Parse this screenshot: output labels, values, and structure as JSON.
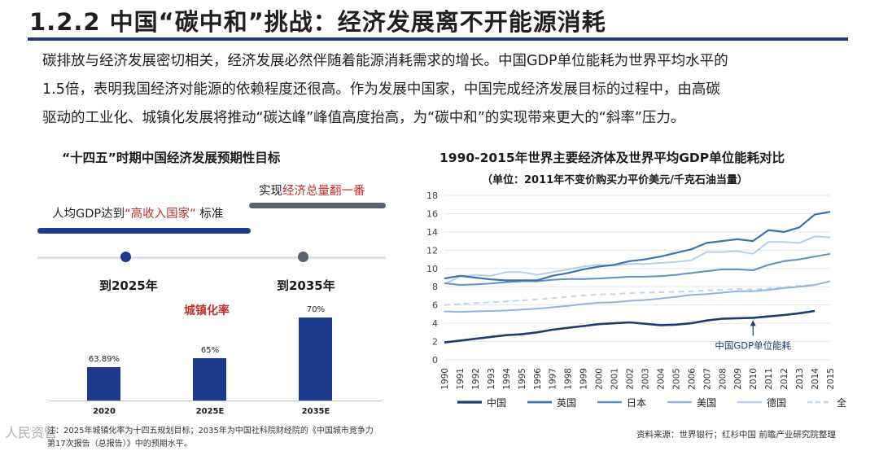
{
  "header": {
    "title": "1.2.2 中国“碳中和”挑战：经济发展离不开能源消耗"
  },
  "intro": {
    "lines": [
      "碳排放与经济发展密切相关，经济发展必然伴随着能源消耗需求的增长。中国GDP单位能耗为世界平均水平的",
      "1.5倍，表明我国经济对能源的依赖程度还很高。作为发展中国家，中国完成经济发展目标的过程中，由高碳",
      "驱动的工业化、城镇化发展将推动“碳达峰”峰值高度抬高，为“碳中和”的实现带来更大的“斜率”压力。"
    ]
  },
  "plan_panel": {
    "title": "“十四五”时期中国经济发展预期性目标",
    "target_2035_prefix": "实现",
    "target_2035_highlight": "经济总量翻一番",
    "target_2025_prefix": "人均GDP达到",
    "target_2025_highlight": "“高收入国家”",
    "target_2025_suffix": "标准",
    "milestone_1": "到2025年",
    "milestone_2": "到2035年",
    "urbanization_label": "城镇化率",
    "colors": {
      "navy": "#1e3a8c",
      "grey": "#5a6270",
      "highlight": "#c0302b"
    },
    "urbanization_bars": [
      {
        "category": "2020",
        "value": 63.89,
        "label": "63.89%"
      },
      {
        "category": "2025E",
        "value": 65,
        "label": "65%"
      },
      {
        "category": "2035E",
        "value": 70,
        "label": "70%"
      }
    ],
    "note": "注：2025年城镇化率为十四五规划目标；2035年为中国社科院财经院的《中国城市竞争力第17次报告（总报告）》中的预期水平。",
    "watermark": "人民资管"
  },
  "chart_data": {
    "type": "line",
    "title": "1990-2015年世界主要经济体及世界平均GDP单位能耗对比",
    "subtitle": "（单位：2011年不变价购买力平价美元/千克石油当量）",
    "x": [
      "1990",
      "1991",
      "1992",
      "1993",
      "1994",
      "1995",
      "1996",
      "1997",
      "1998",
      "1999",
      "2000",
      "2001",
      "2002",
      "2003",
      "2004",
      "2005",
      "2006",
      "2007",
      "2008",
      "2009",
      "2010",
      "2011",
      "2012",
      "2013",
      "2014",
      "2015"
    ],
    "ylim": [
      0,
      18
    ],
    "yticks": [
      0,
      2,
      4,
      6,
      8,
      10,
      12,
      14,
      16,
      18
    ],
    "grid": true,
    "annotation": "中国GDP单位能耗",
    "series": [
      {
        "name": "中国",
        "color": "#1c3c72",
        "dash": "",
        "width": 2.6,
        "values": [
          1.9,
          2.1,
          2.3,
          2.5,
          2.7,
          2.8,
          3.0,
          3.3,
          3.5,
          3.7,
          3.9,
          4.0,
          4.1,
          3.95,
          3.8,
          3.85,
          4.0,
          4.3,
          4.5,
          4.55,
          4.6,
          4.75,
          4.9,
          5.1,
          5.35,
          null
        ]
      },
      {
        "name": "英国",
        "color": "#3e72ae",
        "dash": "",
        "width": 2.2,
        "values": [
          8.9,
          9.2,
          9.0,
          8.8,
          8.7,
          8.7,
          8.7,
          9.2,
          9.5,
          9.9,
          10.2,
          10.4,
          10.8,
          11.0,
          11.3,
          11.7,
          12.1,
          12.8,
          13.0,
          13.2,
          13.0,
          14.2,
          14.0,
          14.5,
          15.9,
          16.2
        ]
      },
      {
        "name": "日本",
        "color": "#5b8fc6",
        "dash": "",
        "width": 2.0,
        "values": [
          8.4,
          8.2,
          8.25,
          8.35,
          8.5,
          8.6,
          8.6,
          8.75,
          8.85,
          8.85,
          8.9,
          9.0,
          9.1,
          9.1,
          9.15,
          9.3,
          9.5,
          9.7,
          9.9,
          9.9,
          9.8,
          10.4,
          10.8,
          11.0,
          11.3,
          11.6
        ]
      },
      {
        "name": "美国",
        "color": "#8fb4de",
        "dash": "",
        "width": 2.0,
        "values": [
          5.3,
          5.25,
          5.3,
          5.35,
          5.4,
          5.5,
          5.6,
          5.75,
          5.9,
          6.1,
          6.25,
          6.3,
          6.45,
          6.55,
          6.7,
          6.9,
          7.1,
          7.2,
          7.35,
          7.5,
          7.5,
          7.65,
          7.85,
          8.0,
          8.2,
          8.6
        ]
      },
      {
        "name": "德国",
        "color": "#b5cdea",
        "dash": "",
        "width": 2.0,
        "values": [
          8.3,
          9.1,
          9.3,
          9.2,
          9.6,
          9.6,
          9.3,
          9.6,
          9.9,
          10.2,
          10.4,
          10.3,
          10.5,
          10.5,
          10.6,
          10.7,
          10.9,
          11.8,
          11.8,
          11.9,
          11.6,
          12.9,
          12.9,
          12.8,
          13.5,
          13.4
        ]
      },
      {
        "name": "全球",
        "color": "#c3d5ec",
        "dash": "7,5",
        "width": 2.0,
        "values": [
          6.0,
          6.1,
          6.2,
          6.3,
          6.4,
          6.5,
          6.6,
          6.75,
          6.9,
          7.05,
          7.15,
          7.2,
          7.3,
          7.35,
          7.4,
          7.45,
          7.5,
          7.6,
          7.65,
          7.75,
          7.7,
          7.8,
          7.95,
          8.1,
          8.2,
          null
        ]
      }
    ]
  },
  "source": "资料来源：世界银行；红杉中国 前瞻产业研究院整理"
}
